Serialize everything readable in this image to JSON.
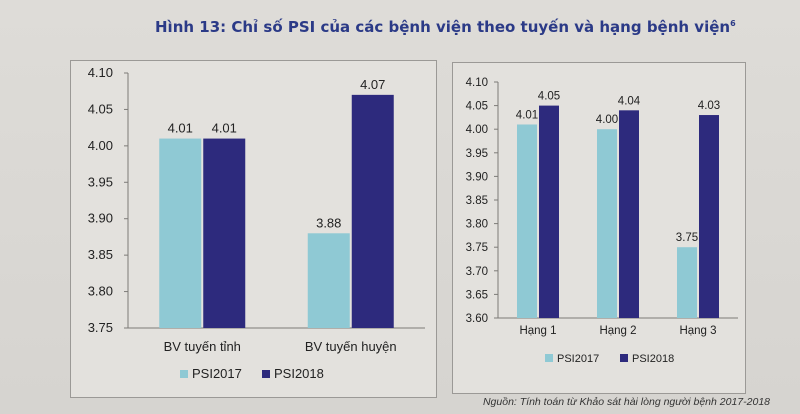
{
  "title": "Hình 13: Chỉ số PSI của các bệnh viện theo tuyến và hạng bệnh viện",
  "title_sup": "6",
  "source": "Nguồn: Tính toán từ Khảo sát hài lòng người bệnh 2017-2018",
  "colors": {
    "PSI2017": "#8fc9d4",
    "PSI2018": "#2d2a7d"
  },
  "chart_data": [
    {
      "type": "bar",
      "categories": [
        "BV tuyến tỉnh",
        "BV tuyến huyện"
      ],
      "series": [
        {
          "name": "PSI2017",
          "values": [
            4.01,
            3.88
          ]
        },
        {
          "name": "PSI2018",
          "values": [
            4.01,
            4.07
          ]
        }
      ],
      "ylim": [
        3.75,
        4.1
      ],
      "yticks": [
        "3.75",
        "3.80",
        "3.85",
        "3.90",
        "3.95",
        "4.00",
        "4.05",
        "4.10"
      ],
      "grid": false,
      "legend": "bottom"
    },
    {
      "type": "bar",
      "categories": [
        "Hạng 1",
        "Hạng 2",
        "Hạng 3"
      ],
      "series": [
        {
          "name": "PSI2017",
          "values": [
            4.01,
            4.0,
            3.75
          ]
        },
        {
          "name": "PSI2018",
          "values": [
            4.05,
            4.04,
            4.03
          ]
        }
      ],
      "ylim": [
        3.6,
        4.1
      ],
      "yticks": [
        "3.60",
        "3.65",
        "3.70",
        "3.75",
        "3.80",
        "3.85",
        "3.90",
        "3.95",
        "4.00",
        "4.05",
        "4.10"
      ],
      "grid": false,
      "legend": "bottom"
    }
  ]
}
